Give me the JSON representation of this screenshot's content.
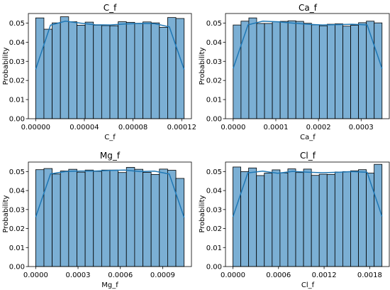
{
  "chart_data": [
    {
      "type": "bar",
      "title": "C_f",
      "xlabel": "C_f",
      "ylabel": "Probability",
      "xlim": [
        -6e-06,
        0.000128
      ],
      "ylim": [
        0,
        0.055
      ],
      "x_ticks": [
        0,
        4e-05,
        8e-05,
        0.00012
      ],
      "x_tick_labels": [
        "0.00000",
        "0.00004",
        "0.00008",
        "0.00012"
      ],
      "y_ticks": [
        0,
        0.01,
        0.02,
        0.03,
        0.04,
        0.05
      ],
      "y_tick_labels": [
        "0.00",
        "0.01",
        "0.02",
        "0.03",
        "0.04",
        "0.05"
      ],
      "bin_start": 0,
      "bin_end": 0.000122,
      "values": [
        0.0527,
        0.0468,
        0.0501,
        0.0533,
        0.0507,
        0.0489,
        0.0505,
        0.0489,
        0.0487,
        0.0486,
        0.0507,
        0.0504,
        0.0499,
        0.0506,
        0.0501,
        0.0478,
        0.0529,
        0.0524
      ],
      "kde": [
        0.0258,
        0.0489,
        0.051,
        0.05,
        0.0491,
        0.049,
        0.0495,
        0.0498,
        0.0497,
        0.048,
        0.0257
      ]
    },
    {
      "type": "bar",
      "title": "Ca_f",
      "xlabel": "Ca_f",
      "ylabel": "Probability",
      "xlim": [
        -1.8e-05,
        0.000366
      ],
      "ylim": [
        0,
        0.055
      ],
      "x_ticks": [
        0,
        0.0001,
        0.0002,
        0.0003
      ],
      "x_tick_labels": [
        "0.0000",
        "0.0001",
        "0.0002",
        "0.0003"
      ],
      "y_ticks": [
        0,
        0.01,
        0.02,
        0.03,
        0.04,
        0.05
      ],
      "y_tick_labels": [
        "0.00",
        "0.01",
        "0.02",
        "0.03",
        "0.04",
        "0.05"
      ],
      "bin_start": 0,
      "bin_end": 0.000349,
      "values": [
        0.049,
        0.051,
        0.0527,
        0.0498,
        0.0498,
        0.0507,
        0.0509,
        0.0512,
        0.0509,
        0.0499,
        0.0491,
        0.0486,
        0.0494,
        0.0496,
        0.0484,
        0.0489,
        0.0502,
        0.051,
        0.0501
      ],
      "kde": [
        0.0263,
        0.0491,
        0.051,
        0.0507,
        0.05,
        0.0494,
        0.049,
        0.0492,
        0.0494,
        0.049,
        0.0262
      ]
    },
    {
      "type": "bar",
      "title": "Mg_f",
      "xlabel": "Mg_f",
      "ylabel": "Probability",
      "xlim": [
        -5.2e-05,
        0.001104
      ],
      "ylim": [
        0,
        0.055
      ],
      "x_ticks": [
        0,
        0.0003,
        0.0006,
        0.0009
      ],
      "x_tick_labels": [
        "0.0000",
        "0.0003",
        "0.0006",
        "0.0009"
      ],
      "y_ticks": [
        0,
        0.01,
        0.02,
        0.03,
        0.04,
        0.05
      ],
      "y_tick_labels": [
        "0.00",
        "0.01",
        "0.02",
        "0.03",
        "0.04",
        "0.05"
      ],
      "bin_start": 0,
      "bin_end": 0.001052,
      "values": [
        0.051,
        0.0516,
        0.0487,
        0.0503,
        0.0512,
        0.0497,
        0.0508,
        0.0501,
        0.0508,
        0.0508,
        0.0495,
        0.0522,
        0.0512,
        0.0496,
        0.0485,
        0.0513,
        0.0507,
        0.0464
      ],
      "kde": [
        0.026,
        0.0488,
        0.05,
        0.0503,
        0.0503,
        0.0506,
        0.0508,
        0.05,
        0.0502,
        0.0487,
        0.0258
      ]
    },
    {
      "type": "bar",
      "title": "Cl_f",
      "xlabel": "Cl_f",
      "ylabel": "Probability",
      "xlim": [
        -9.8e-05,
        0.002058
      ],
      "ylim": [
        0,
        0.055
      ],
      "x_ticks": [
        0,
        0.0006,
        0.0012,
        0.0018
      ],
      "x_tick_labels": [
        "0.0000",
        "0.0006",
        "0.0012",
        "0.0018"
      ],
      "y_ticks": [
        0,
        0.01,
        0.02,
        0.03,
        0.04,
        0.05
      ],
      "y_tick_labels": [
        "0.00",
        "0.01",
        "0.02",
        "0.03",
        "0.04",
        "0.05"
      ],
      "bin_start": 0,
      "bin_end": 0.001962,
      "values": [
        0.0524,
        0.05,
        0.0519,
        0.0479,
        0.0492,
        0.0509,
        0.0493,
        0.0514,
        0.0495,
        0.0513,
        0.048,
        0.0486,
        0.0485,
        0.0498,
        0.05,
        0.0504,
        0.051,
        0.0492,
        0.0538
      ],
      "kde": [
        0.0262,
        0.0493,
        0.0502,
        0.0491,
        0.0501,
        0.0497,
        0.0494,
        0.0496,
        0.05,
        0.0496,
        0.0264
      ]
    }
  ],
  "style": {
    "bar_fill": "#7bafd4",
    "bar_edge": "#000000",
    "kde_color": "#1f77b4"
  }
}
